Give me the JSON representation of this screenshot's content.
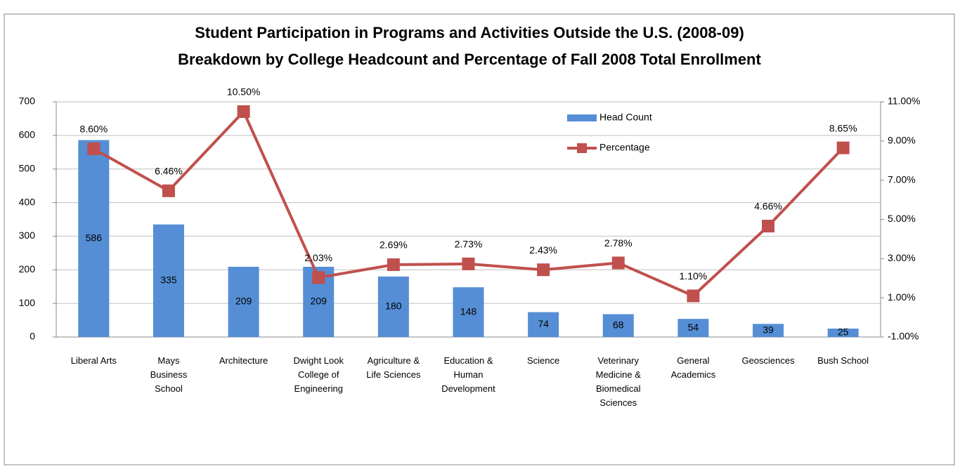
{
  "chart_data": {
    "type": "bar_line",
    "title": "Student Participation in Programs and Activities Outside the U.S. (2008-09)",
    "subtitle": "Breakdown by College Headcount and Percentage of Fall 2008 Total Enrollment",
    "categories": [
      "Liberal Arts",
      "Mays Business School",
      "Architecture",
      "Dwight Look College of Engineering",
      "Agriculture & Life Sciences",
      "Education & Human Development",
      "Science",
      "Veterinary Medicine & Biomedical Sciences",
      "General Academics",
      "Geosciences",
      "Bush School"
    ],
    "series": [
      {
        "name": "Head Count",
        "type": "bar",
        "color": "#558ed5",
        "values": [
          586,
          335,
          209,
          209,
          180,
          148,
          74,
          68,
          54,
          39,
          25
        ]
      },
      {
        "name": "Percentage",
        "type": "line",
        "axis": "y2",
        "color": "#c0504d",
        "values": [
          8.6,
          6.46,
          10.5,
          2.03,
          2.69,
          2.73,
          2.43,
          2.78,
          1.1,
          4.66,
          8.65
        ],
        "value_labels": [
          "8.60%",
          "6.46%",
          "10.50%",
          "2.03%",
          "2.69%",
          "2.73%",
          "2.43%",
          "2.78%",
          "1.10%",
          "4.66%",
          "8.65%"
        ]
      }
    ],
    "ylim": [
      0,
      700
    ],
    "yticks": [
      0,
      100,
      200,
      300,
      400,
      500,
      600,
      700
    ],
    "y2lim": [
      -1,
      11
    ],
    "y2ticks": [
      {
        "value": -1,
        "label": "-1.00%"
      },
      {
        "value": 1,
        "label": "1.00%"
      },
      {
        "value": 3,
        "label": "3.00%"
      },
      {
        "value": 5,
        "label": "5.00%"
      },
      {
        "value": 7,
        "label": "7.00%"
      },
      {
        "value": 9,
        "label": "9.00%"
      },
      {
        "value": 11,
        "label": "11.00%"
      }
    ],
    "grid": true,
    "legend": "top-right"
  }
}
